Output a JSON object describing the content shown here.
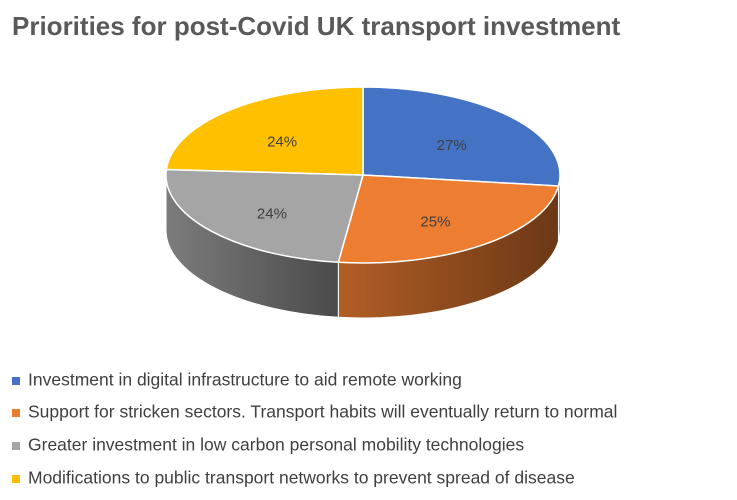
{
  "chart_data": {
    "type": "pie",
    "title": "Priorities for post-Covid UK transport investment",
    "categories": [
      "Investment in digital infrastructure to aid remote working",
      "Support for stricken sectors. Transport habits will eventually return to normal",
      "Greater investment in low carbon personal mobility technologies",
      "Modifications to public transport networks to prevent spread of disease"
    ],
    "values": [
      27,
      25,
      24,
      24
    ],
    "value_labels": [
      "27%",
      "25%",
      "24%",
      "24%"
    ],
    "colors": [
      "#4472c4",
      "#ed7d31",
      "#a5a5a5",
      "#ffc000"
    ],
    "legend": "bottom-left"
  }
}
